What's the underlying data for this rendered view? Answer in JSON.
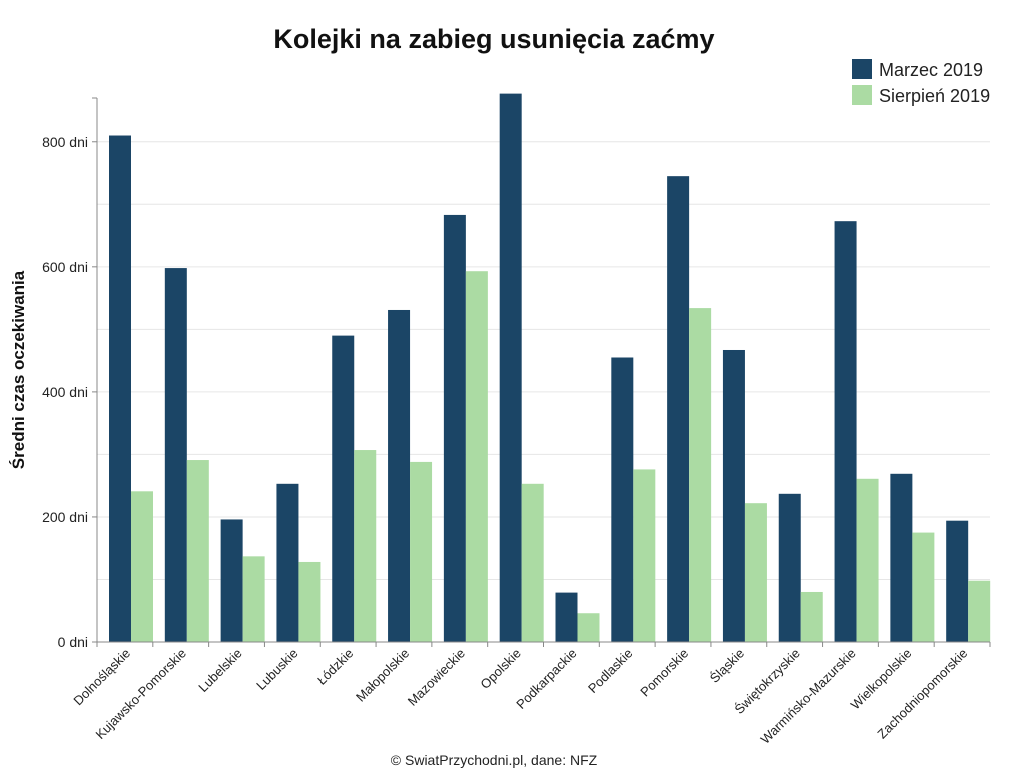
{
  "chart_data": {
    "type": "bar",
    "title": "Kolejki na zabieg usunięcia zaćmy",
    "ylabel": "Średni czas oczekiwania",
    "xlabel": "",
    "ylim": [
      0,
      870
    ],
    "yticks": [
      0,
      200,
      400,
      600,
      800
    ],
    "ytick_labels": [
      "0 dni",
      "200 dni",
      "400 dni",
      "600 dni",
      "800 dni"
    ],
    "grid": true,
    "legend_position": "top-right",
    "categories": [
      "Dolnośląskie",
      "Kujawsko-Pomorskie",
      "Lubelskie",
      "Lubuskie",
      "Łódzkie",
      "Małopolskie",
      "Mazowieckie",
      "Opolskie",
      "Podkarpackie",
      "Podlaskie",
      "Pomorskie",
      "Śląskie",
      "Świętokrzyskie",
      "Warmińsko-Mazurskie",
      "Wielkopolskie",
      "Zachodniopomorskie"
    ],
    "series": [
      {
        "name": "Marzec 2019",
        "color": "#1b4566",
        "values": [
          810,
          598,
          196,
          253,
          490,
          531,
          683,
          877,
          79,
          455,
          745,
          467,
          237,
          673,
          269,
          194
        ]
      },
      {
        "name": "Sierpień 2019",
        "color": "#abdba3",
        "values": [
          241,
          291,
          137,
          128,
          307,
          288,
          593,
          253,
          46,
          276,
          534,
          222,
          80,
          261,
          175,
          98
        ]
      }
    ],
    "source": "© SwiatPrzychodni.pl, dane: NFZ"
  }
}
